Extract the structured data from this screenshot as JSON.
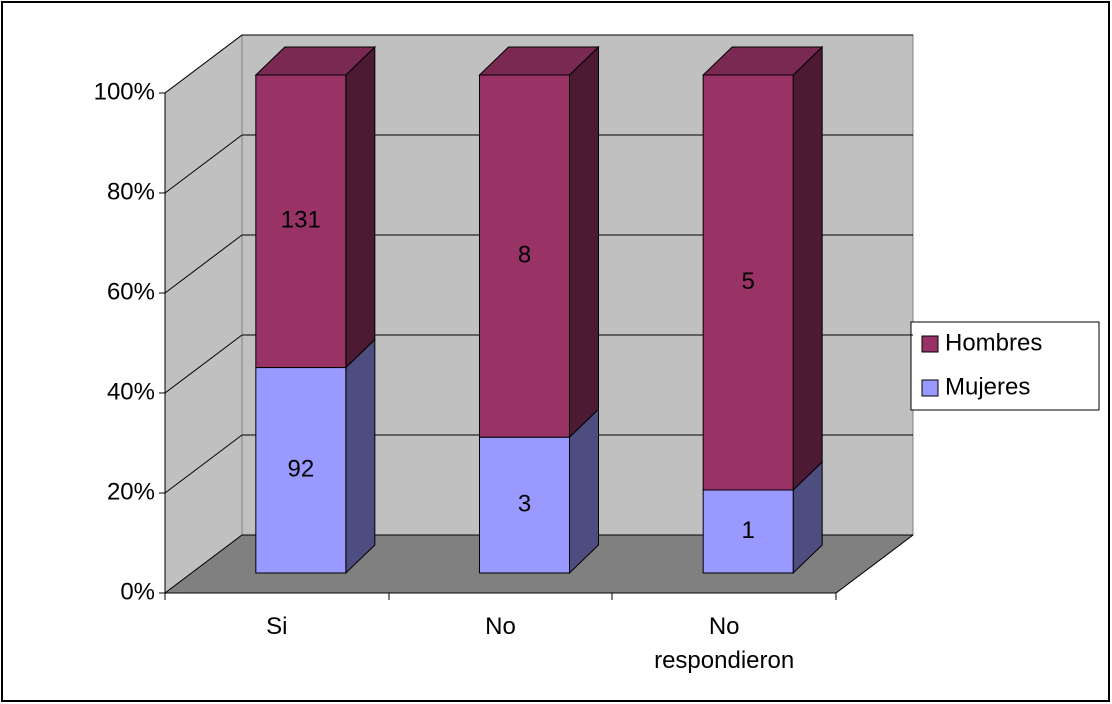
{
  "chart_data": {
    "type": "bar",
    "stacked": "percent",
    "categories": [
      "Si",
      "No",
      "No respondieron"
    ],
    "series": [
      {
        "name": "Mujeres",
        "color": "#9999ff",
        "values": [
          92,
          3,
          1
        ]
      },
      {
        "name": "Hombres",
        "color": "#993366",
        "values": [
          131,
          8,
          5
        ]
      }
    ],
    "ylim": [
      0,
      100
    ],
    "yticks": [
      {
        "value": 0,
        "label": "0%"
      },
      {
        "value": 20,
        "label": "20%"
      },
      {
        "value": 40,
        "label": "40%"
      },
      {
        "value": 60,
        "label": "60%"
      },
      {
        "value": 80,
        "label": "80%"
      },
      {
        "value": 100,
        "label": "100%"
      }
    ],
    "grid": true,
    "legend": "right"
  }
}
